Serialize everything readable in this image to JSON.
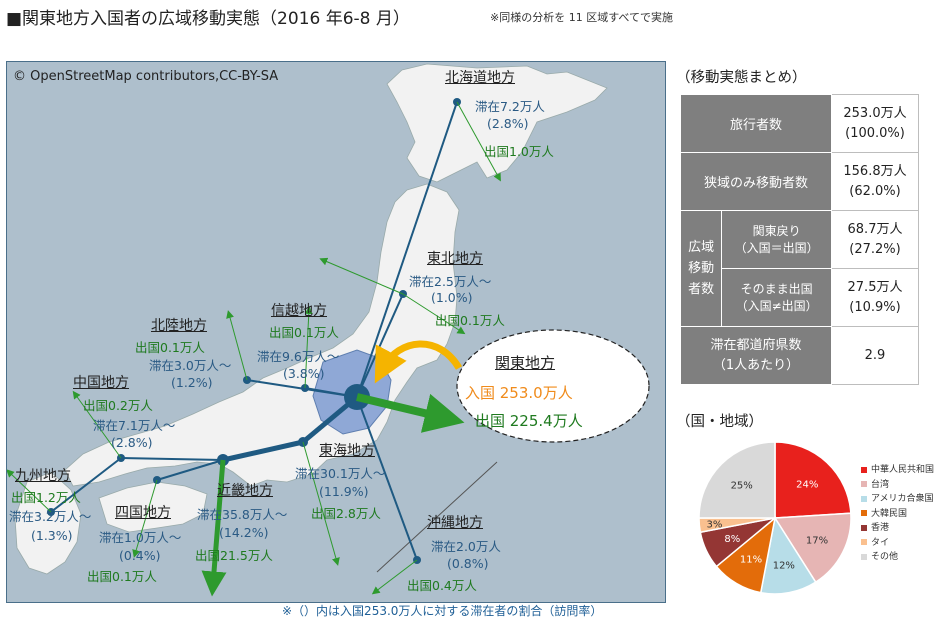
{
  "header": {
    "title": "■関東地方入国者の広域移動実態（2016 年6-8 月）",
    "note": "※同様の分析を 11 区域すべてで実施"
  },
  "map": {
    "attribution": "© OpenStreetMap contributors,CC-BY-SA",
    "hub": {
      "name": "関東地方",
      "entry": "入国 253.0万人",
      "exit": "出国 225.4万人"
    },
    "regions": {
      "hokkaido": {
        "name": "北海道地方",
        "stay": "滞在7.2万人",
        "share": "(2.8%)",
        "exit": "出国1.0万人"
      },
      "tohoku": {
        "name": "東北地方",
        "stay": "滞在2.5万人～",
        "share": "(1.0%)",
        "exit": "出国0.1万人"
      },
      "shinetsu": {
        "name": "信越地方",
        "exit": "出国0.1万人",
        "stay": "滞在9.6万人～",
        "share": "(3.8%)"
      },
      "hokuriku": {
        "name": "北陸地方",
        "exit": "出国0.1万人",
        "stay": "滞在3.0万人～",
        "share": "(1.2%)"
      },
      "chugoku": {
        "name": "中国地方",
        "exit": "出国0.2万人",
        "stay": "滞在7.1万人～",
        "share": "(2.8%)"
      },
      "kyushu": {
        "name": "九州地方",
        "exit": "出国1.2万人",
        "stay": "滞在3.2万人～",
        "share": "(1.3%)"
      },
      "shikoku": {
        "name": "四国地方",
        "stay": "滞在1.0万人～",
        "share": "(0.4%)",
        "exit": "出国0.1万人"
      },
      "kinki": {
        "name": "近畿地方",
        "stay": "滞在35.8万人～",
        "share": "(14.2%)",
        "exit": "出国21.5万人"
      },
      "tokai": {
        "name": "東海地方",
        "stay": "滞在30.1万人～",
        "share": "(11.9%)",
        "exit": "出国2.8万人"
      },
      "okinawa": {
        "name": "沖縄地方",
        "stay": "滞在2.0万人",
        "share": "(0.8%)",
        "exit": "出国0.4万人"
      }
    },
    "footnote": "※（）内は入国253.0万人に対する滞在者の割合（訪問率）"
  },
  "summary": {
    "title": "（移動実態まとめ）",
    "rows": {
      "travelers": {
        "label": "旅行者数",
        "value": "253.0万人",
        "pct": "(100.0%)"
      },
      "narrow": {
        "label": "狭域のみ移動者数",
        "value": "156.8万人",
        "pct": "(62.0%)"
      },
      "wide_label": [
        "広域",
        "移動",
        "者数"
      ],
      "return": {
        "label": "関東戻り",
        "sub": "（入国＝出国）",
        "value": "68.7万人",
        "pct": "(27.2%)"
      },
      "direct": {
        "label": "そのまま出国",
        "sub": "（入国≠出国）",
        "value": "27.5万人",
        "pct": "(10.9%)"
      },
      "stay": {
        "label": "滞在都道府県数",
        "sub": "（1人あたり）",
        "value": "2.9"
      }
    }
  },
  "pie": {
    "title": "（国・地域）",
    "slices": [
      {
        "name": "中華人民共和国",
        "value": 24,
        "label": "24%",
        "color": "#e8211d"
      },
      {
        "name": "台湾",
        "value": 17,
        "label": "17%",
        "color": "#e6b5b4"
      },
      {
        "name": "アメリカ合衆国",
        "value": 12,
        "label": "12%",
        "color": "#b7dde8"
      },
      {
        "name": "大韓民国",
        "value": 11,
        "label": "11%",
        "color": "#e36c0a"
      },
      {
        "name": "香港",
        "value": 8,
        "label": "8%",
        "color": "#943634"
      },
      {
        "name": "タイ",
        "value": 3,
        "label": "3%",
        "color": "#fac08f"
      },
      {
        "name": "その他",
        "value": 25,
        "label": "25%",
        "color": "#d9d9d9"
      }
    ]
  }
}
